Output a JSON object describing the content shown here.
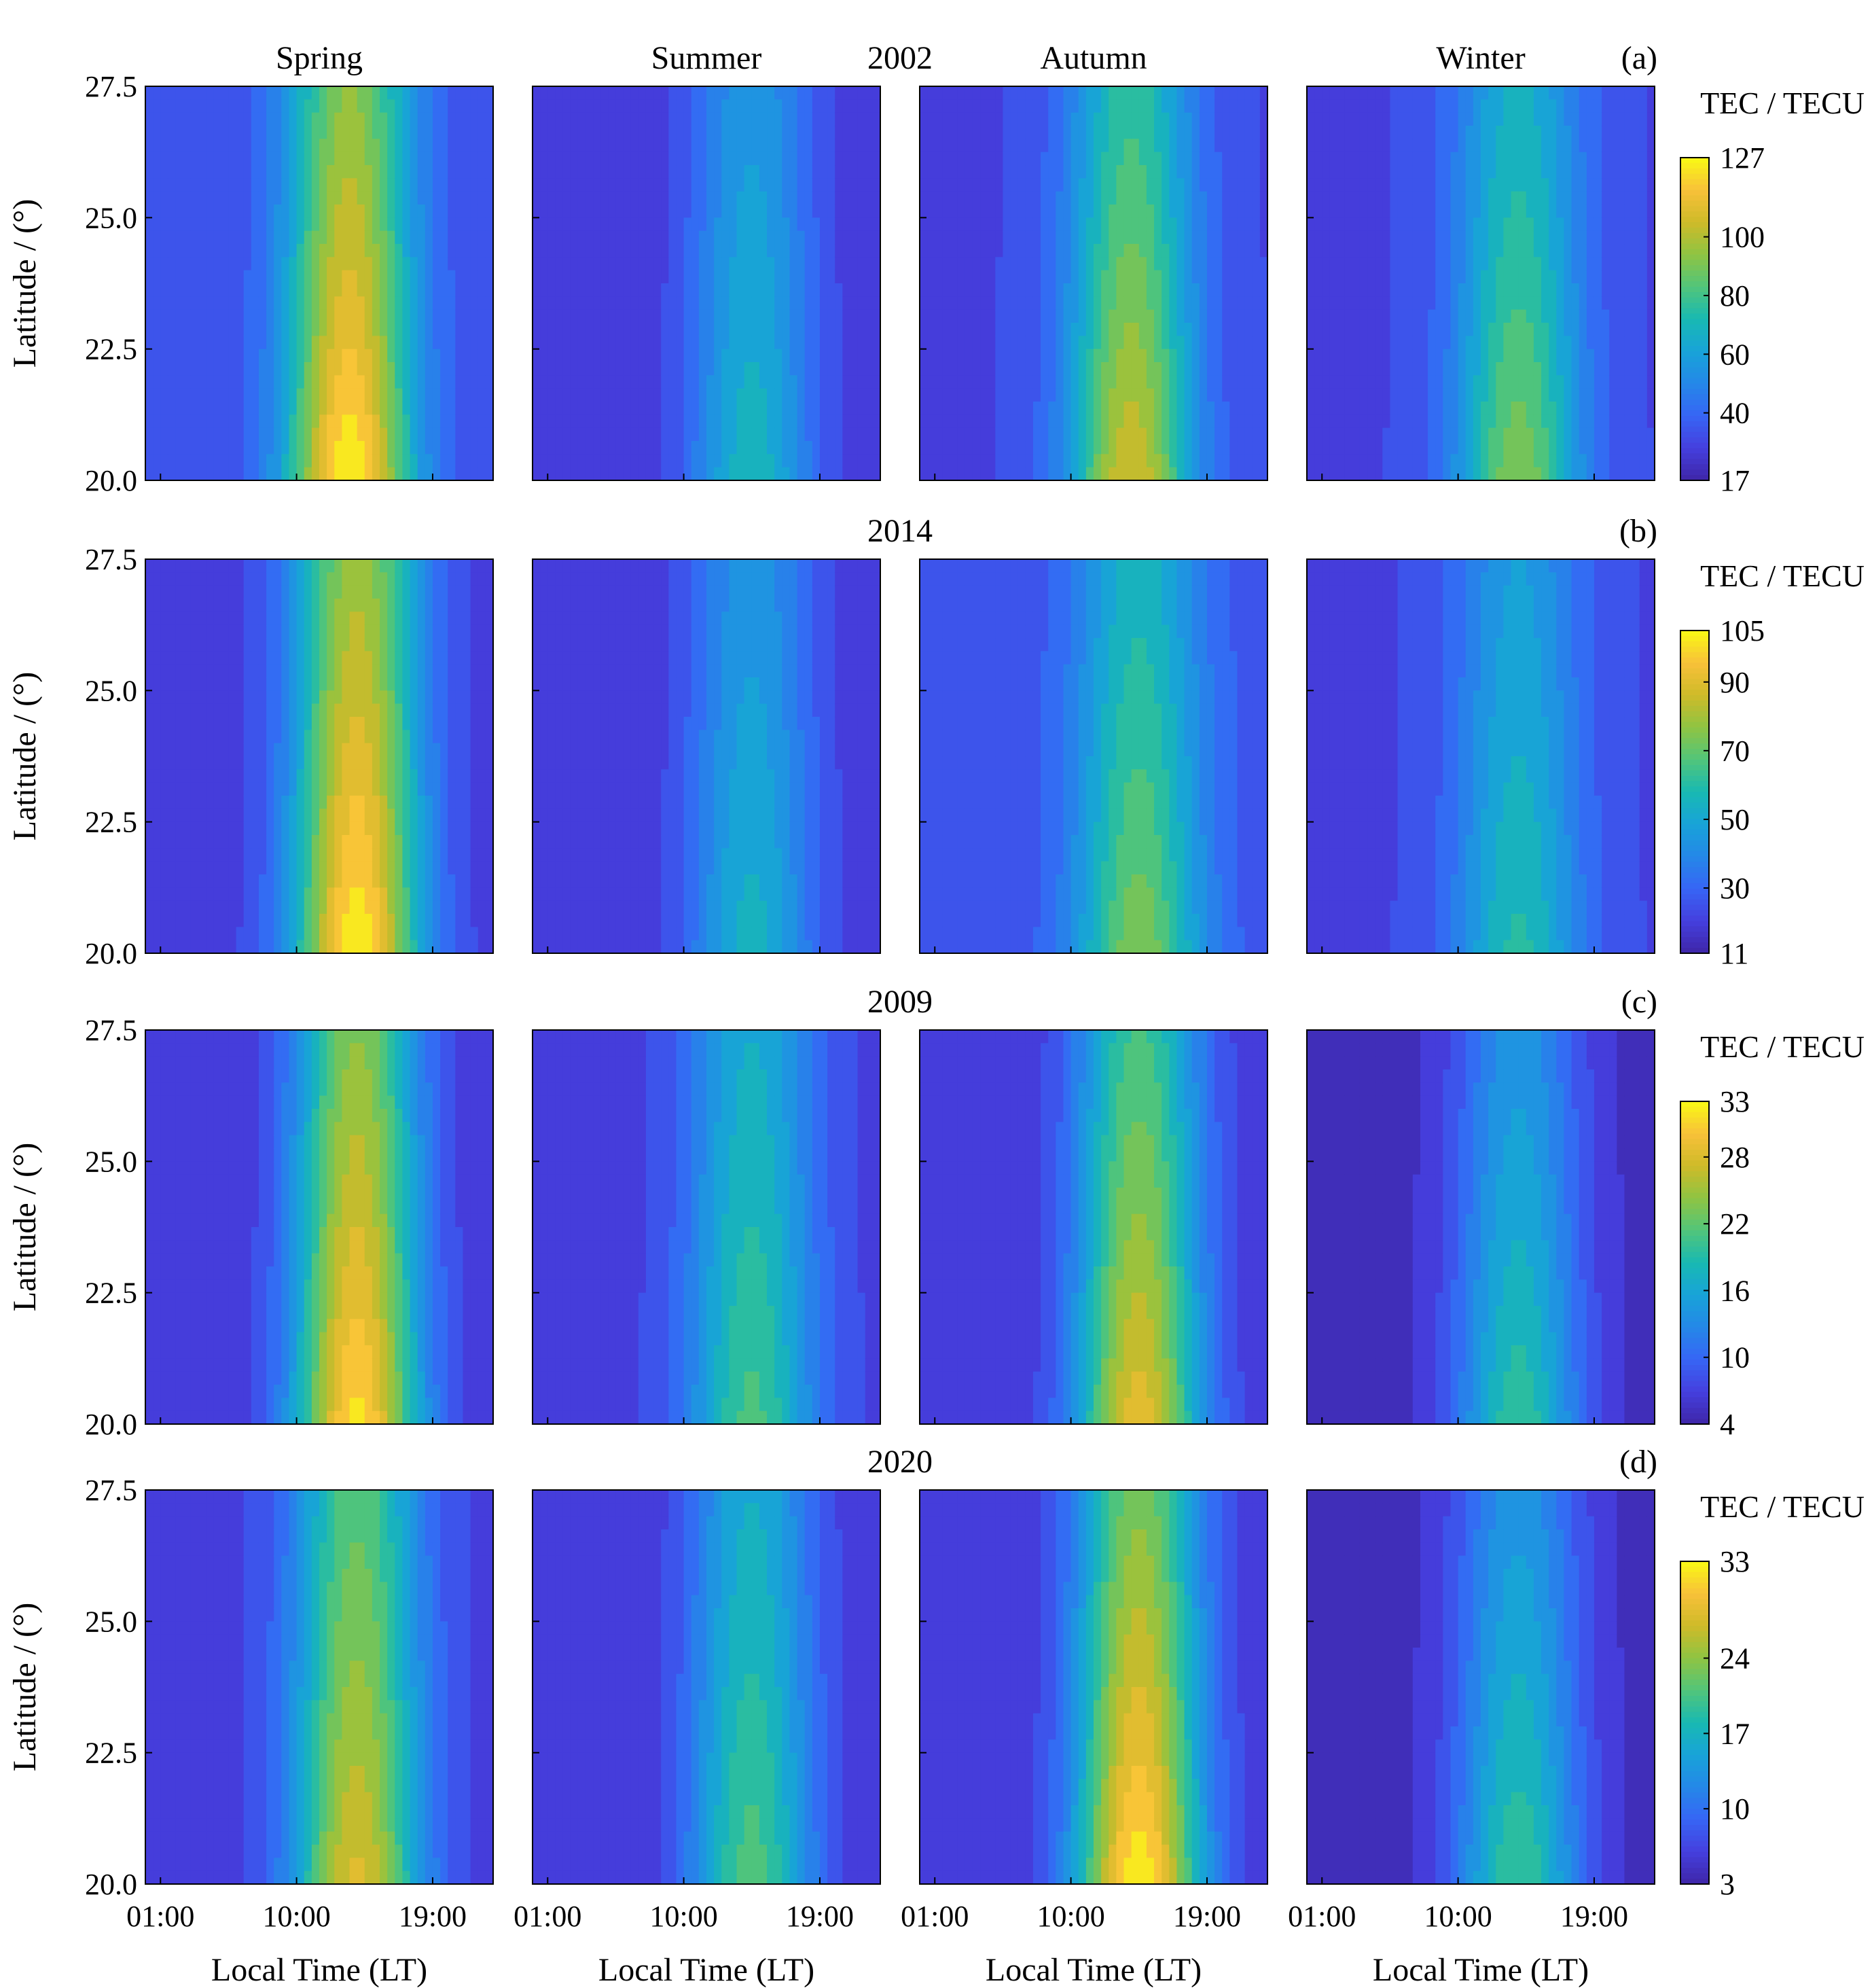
{
  "chart_data": {
    "type": "heatmap",
    "seasons": [
      "Spring",
      "Summer",
      "Autumn",
      "Winter"
    ],
    "xlabel": "Local Time (LT)",
    "ylabel": "Latitude / (°)",
    "x_ticks": [
      "01:00",
      "10:00",
      "19:00"
    ],
    "x_range_hours": [
      0,
      23
    ],
    "y_ticks": [
      "20.0",
      "22.5",
      "25.0",
      "27.5"
    ],
    "ylim": [
      20.0,
      27.5
    ],
    "colormap": "parula",
    "colorbar_title": "TEC / TECU",
    "rows": [
      {
        "year": "2002",
        "panel_label": "(a)",
        "colorbar_ticks": [
          "17",
          "40",
          "60",
          "80",
          "100",
          "127"
        ],
        "clim": [
          17,
          127
        ],
        "panels": [
          {
            "season": "Spring",
            "base": 32,
            "peak": 127,
            "peak_hour": 13.5,
            "lat_decay": 0.06
          },
          {
            "season": "Summer",
            "base": 25,
            "peak": 70,
            "peak_hour": 14.5,
            "lat_decay": 0.05
          },
          {
            "season": "Autumn",
            "base": 30,
            "peak": 107,
            "peak_hour": 14.0,
            "lat_decay": 0.07
          },
          {
            "season": "Winter",
            "base": 30,
            "peak": 92,
            "peak_hour": 14.0,
            "lat_decay": 0.07
          }
        ]
      },
      {
        "year": "2014",
        "panel_label": "(b)",
        "colorbar_ticks": [
          "11",
          "30",
          "50",
          "70",
          "90",
          "105"
        ],
        "clim": [
          11,
          105
        ],
        "panels": [
          {
            "season": "Spring",
            "base": 20,
            "peak": 105,
            "peak_hour": 14.0,
            "lat_decay": 0.05
          },
          {
            "season": "Summer",
            "base": 18,
            "peak": 55,
            "peak_hour": 14.5,
            "lat_decay": 0.05
          },
          {
            "season": "Autumn",
            "base": 25,
            "peak": 75,
            "peak_hour": 14.5,
            "lat_decay": 0.07
          },
          {
            "season": "Winter",
            "base": 22,
            "peak": 60,
            "peak_hour": 14.0,
            "lat_decay": 0.06
          }
        ]
      },
      {
        "year": "2009",
        "panel_label": "(c)",
        "colorbar_ticks": [
          "4",
          "10",
          "16",
          "22",
          "28",
          "33"
        ],
        "clim": [
          4,
          33
        ],
        "panels": [
          {
            "season": "Spring",
            "base": 6,
            "peak": 32,
            "peak_hour": 14.0,
            "lat_decay": 0.05
          },
          {
            "season": "Summer",
            "base": 7,
            "peak": 21,
            "peak_hour": 14.5,
            "lat_decay": 0.05
          },
          {
            "season": "Autumn",
            "base": 6,
            "peak": 29,
            "peak_hour": 14.5,
            "lat_decay": 0.06
          },
          {
            "season": "Winter",
            "base": 5,
            "peak": 20,
            "peak_hour": 14.0,
            "lat_decay": 0.07
          }
        ]
      },
      {
        "year": "2020",
        "panel_label": "(d)",
        "colorbar_ticks": [
          "3",
          "10",
          "17",
          "24",
          "33"
        ],
        "clim": [
          3,
          33
        ],
        "panels": [
          {
            "season": "Spring",
            "base": 6,
            "peak": 28,
            "peak_hour": 14.0,
            "lat_decay": 0.05
          },
          {
            "season": "Summer",
            "base": 5,
            "peak": 21,
            "peak_hour": 14.5,
            "lat_decay": 0.05
          },
          {
            "season": "Autumn",
            "base": 5,
            "peak": 33,
            "peak_hour": 14.5,
            "lat_decay": 0.06
          },
          {
            "season": "Winter",
            "base": 4,
            "peak": 20,
            "peak_hour": 14.0,
            "lat_decay": 0.07
          }
        ]
      }
    ]
  }
}
